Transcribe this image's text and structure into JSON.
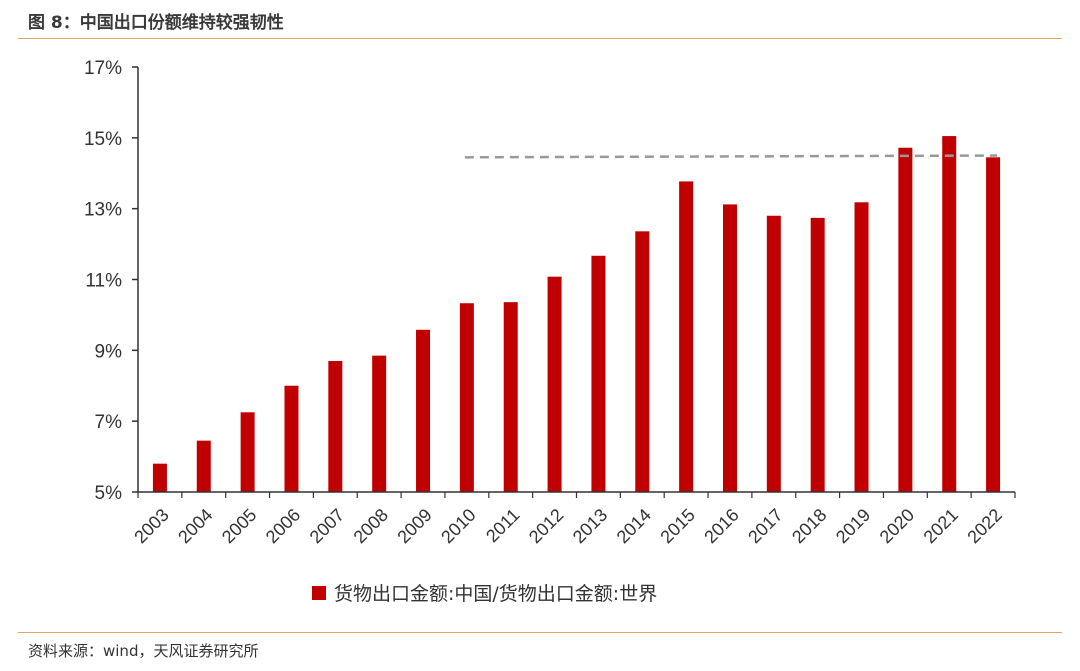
{
  "header": {
    "title": "图 8：中国出口份额维持较强韧性"
  },
  "footer": {
    "source": "资料来源：wind，天风证券研究所"
  },
  "chart_data": {
    "type": "bar",
    "categories": [
      "2003",
      "2004",
      "2005",
      "2006",
      "2007",
      "2008",
      "2009",
      "2010",
      "2011",
      "2012",
      "2013",
      "2014",
      "2015",
      "2016",
      "2017",
      "2018",
      "2019",
      "2020",
      "2021",
      "2022"
    ],
    "series": [
      {
        "name": "货物出口金额:中国/货物出口金额:世界",
        "values": [
          5.8,
          6.45,
          7.25,
          8.0,
          8.7,
          8.85,
          9.58,
          10.33,
          10.36,
          11.08,
          11.67,
          12.36,
          13.77,
          13.12,
          12.8,
          12.74,
          13.18,
          14.72,
          15.05,
          14.45
        ],
        "color": "#c00000"
      }
    ],
    "ylim": [
      5,
      17
    ],
    "yticks": [
      5,
      7,
      9,
      11,
      13,
      15,
      17
    ],
    "ytick_labels": [
      "5%",
      "7%",
      "9%",
      "11%",
      "13%",
      "15%",
      "17%"
    ],
    "reference_line": {
      "from_category": "2010",
      "to_category": "2022",
      "y_start": 14.45,
      "y_end": 14.5,
      "color": "#999999",
      "style": "dashed"
    },
    "legend_position": "bottom"
  }
}
